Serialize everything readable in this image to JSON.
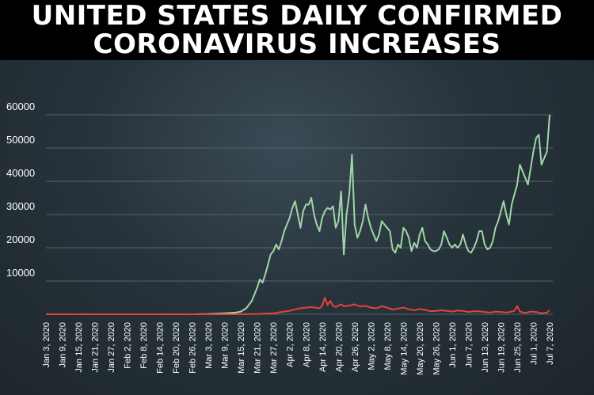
{
  "title": {
    "line1": "UNITED STATES DAILY CONFIRMED",
    "line2": "CORONAVIRUS INCREASES"
  },
  "colors": {
    "cases": "#9fd6a8",
    "deaths": "#e3433c",
    "grid": "#56636c",
    "background": "#27333b"
  },
  "chart_data": {
    "type": "line",
    "title": "UNITED STATES DAILY CONFIRMED CORONAVIRUS INCREASES",
    "xlabel": "",
    "ylabel": "",
    "ylim": [
      0,
      60000
    ],
    "yticks": [
      10000,
      20000,
      30000,
      40000,
      50000,
      60000
    ],
    "grid": true,
    "legend": "none",
    "xtick_labels": [
      "Jan 3, 2020",
      "Jan 9, 2020",
      "Jan 15, 2020",
      "Jan 21, 2020",
      "Jan 27, 2020",
      "Feb 2, 2020",
      "Feb 8, 2020",
      "Feb 14, 2020",
      "Feb 20, 2020",
      "Feb 26, 2020",
      "Mar 3, 2020",
      "Mar 9, 2020",
      "Mar 15, 2020",
      "Mar 21, 2020",
      "Mar 27, 2020",
      "Apr 2, 2020",
      "Apr 8, 2020",
      "Apr 14, 2020",
      "Apr 20, 2020",
      "Apr 26, 2020",
      "May 2, 2020",
      "May 8, 2020",
      "May 14, 2020",
      "May 20, 2020",
      "May 26, 2020",
      "Jun 1, 2020",
      "Jun 7, 2020",
      "Jun 13, 2020",
      "Jun 19, 2020",
      "Jun 25, 2020",
      "Jul 1, 2020",
      "Jul 7, 2020"
    ],
    "series": [
      {
        "values": [
          [
            "2020-01-03",
            0
          ],
          [
            "2020-02-26",
            0
          ],
          [
            "2020-03-03",
            100
          ],
          [
            "2020-03-09",
            300
          ],
          [
            "2020-03-13",
            500
          ],
          [
            "2020-03-15",
            800
          ],
          [
            "2020-03-17",
            1800
          ],
          [
            "2020-03-19",
            4000
          ],
          [
            "2020-03-21",
            8000
          ],
          [
            "2020-03-22",
            10500
          ],
          [
            "2020-03-23",
            9500
          ],
          [
            "2020-03-24",
            12000
          ],
          [
            "2020-03-25",
            15000
          ],
          [
            "2020-03-26",
            18000
          ],
          [
            "2020-03-27",
            19000
          ],
          [
            "2020-03-28",
            21000
          ],
          [
            "2020-03-29",
            19500
          ],
          [
            "2020-03-30",
            22000
          ],
          [
            "2020-03-31",
            25000
          ],
          [
            "2020-04-01",
            27000
          ],
          [
            "2020-04-02",
            29000
          ],
          [
            "2020-04-03",
            32000
          ],
          [
            "2020-04-04",
            34000
          ],
          [
            "2020-04-05",
            30000
          ],
          [
            "2020-04-06",
            26000
          ],
          [
            "2020-04-07",
            31000
          ],
          [
            "2020-04-08",
            33000
          ],
          [
            "2020-04-09",
            33000
          ],
          [
            "2020-04-10",
            35000
          ],
          [
            "2020-04-11",
            30000
          ],
          [
            "2020-04-12",
            27000
          ],
          [
            "2020-04-13",
            25000
          ],
          [
            "2020-04-14",
            29000
          ],
          [
            "2020-04-15",
            31000
          ],
          [
            "2020-04-16",
            32000
          ],
          [
            "2020-04-17",
            31500
          ],
          [
            "2020-04-18",
            32500
          ],
          [
            "2020-04-19",
            26000
          ],
          [
            "2020-04-20",
            28000
          ],
          [
            "2020-04-21",
            37000
          ],
          [
            "2020-04-22",
            18000
          ],
          [
            "2020-04-23",
            30000
          ],
          [
            "2020-04-24",
            36000
          ],
          [
            "2020-04-25",
            48000
          ],
          [
            "2020-04-26",
            27000
          ],
          [
            "2020-04-27",
            23000
          ],
          [
            "2020-04-28",
            25000
          ],
          [
            "2020-04-29",
            28000
          ],
          [
            "2020-04-30",
            33000
          ],
          [
            "2020-05-01",
            29000
          ],
          [
            "2020-05-02",
            26000
          ],
          [
            "2020-05-03",
            24000
          ],
          [
            "2020-05-04",
            22000
          ],
          [
            "2020-05-05",
            24000
          ],
          [
            "2020-05-06",
            28000
          ],
          [
            "2020-05-07",
            27000
          ],
          [
            "2020-05-08",
            26000
          ],
          [
            "2020-05-09",
            25000
          ],
          [
            "2020-05-10",
            19500
          ],
          [
            "2020-05-11",
            18500
          ],
          [
            "2020-05-12",
            21000
          ],
          [
            "2020-05-13",
            20000
          ],
          [
            "2020-05-14",
            26000
          ],
          [
            "2020-05-15",
            25000
          ],
          [
            "2020-05-16",
            23000
          ],
          [
            "2020-05-17",
            19000
          ],
          [
            "2020-05-18",
            21500
          ],
          [
            "2020-05-19",
            20000
          ],
          [
            "2020-05-20",
            24000
          ],
          [
            "2020-05-21",
            26000
          ],
          [
            "2020-05-22",
            22000
          ],
          [
            "2020-05-23",
            21000
          ],
          [
            "2020-05-24",
            19500
          ],
          [
            "2020-05-25",
            19000
          ],
          [
            "2020-05-26",
            19000
          ],
          [
            "2020-05-27",
            19500
          ],
          [
            "2020-05-28",
            21000
          ],
          [
            "2020-05-29",
            25000
          ],
          [
            "2020-05-30",
            23000
          ],
          [
            "2020-05-31",
            21000
          ],
          [
            "2020-06-01",
            20000
          ],
          [
            "2020-06-02",
            21000
          ],
          [
            "2020-06-03",
            20000
          ],
          [
            "2020-06-04",
            21000
          ],
          [
            "2020-06-05",
            24000
          ],
          [
            "2020-06-06",
            21000
          ],
          [
            "2020-06-07",
            19000
          ],
          [
            "2020-06-08",
            18500
          ],
          [
            "2020-06-09",
            20000
          ],
          [
            "2020-06-10",
            22000
          ],
          [
            "2020-06-11",
            25000
          ],
          [
            "2020-06-12",
            25000
          ],
          [
            "2020-06-13",
            21000
          ],
          [
            "2020-06-14",
            19500
          ],
          [
            "2020-06-15",
            20000
          ],
          [
            "2020-06-16",
            22000
          ],
          [
            "2020-06-17",
            26000
          ],
          [
            "2020-06-18",
            28000
          ],
          [
            "2020-06-19",
            31000
          ],
          [
            "2020-06-20",
            34000
          ],
          [
            "2020-06-21",
            30000
          ],
          [
            "2020-06-22",
            27000
          ],
          [
            "2020-06-23",
            33000
          ],
          [
            "2020-06-24",
            36000
          ],
          [
            "2020-06-25",
            39000
          ],
          [
            "2020-06-26",
            45000
          ],
          [
            "2020-06-27",
            43000
          ],
          [
            "2020-06-28",
            41000
          ],
          [
            "2020-06-29",
            39000
          ],
          [
            "2020-06-30",
            44000
          ],
          [
            "2020-07-01",
            49000
          ],
          [
            "2020-07-02",
            53000
          ],
          [
            "2020-07-03",
            54000
          ],
          [
            "2020-07-04",
            45000
          ],
          [
            "2020-07-05",
            47000
          ],
          [
            "2020-07-06",
            49000
          ],
          [
            "2020-07-07",
            60000
          ]
        ]
      },
      {
        "values": [
          [
            "2020-01-03",
            0
          ],
          [
            "2020-03-13",
            0
          ],
          [
            "2020-03-21",
            100
          ],
          [
            "2020-03-27",
            300
          ],
          [
            "2020-03-31",
            800
          ],
          [
            "2020-04-02",
            1000
          ],
          [
            "2020-04-04",
            1500
          ],
          [
            "2020-04-06",
            1800
          ],
          [
            "2020-04-08",
            2000
          ],
          [
            "2020-04-10",
            2200
          ],
          [
            "2020-04-12",
            1900
          ],
          [
            "2020-04-13",
            1800
          ],
          [
            "2020-04-14",
            2500
          ],
          [
            "2020-04-15",
            5000
          ],
          [
            "2020-04-16",
            2800
          ],
          [
            "2020-04-17",
            4000
          ],
          [
            "2020-04-18",
            2600
          ],
          [
            "2020-04-19",
            2200
          ],
          [
            "2020-04-21",
            3000
          ],
          [
            "2020-04-22",
            2400
          ],
          [
            "2020-04-24",
            2600
          ],
          [
            "2020-04-26",
            3000
          ],
          [
            "2020-04-28",
            2300
          ],
          [
            "2020-04-30",
            2500
          ],
          [
            "2020-05-02",
            2000
          ],
          [
            "2020-05-04",
            1800
          ],
          [
            "2020-05-06",
            2400
          ],
          [
            "2020-05-08",
            2000
          ],
          [
            "2020-05-10",
            1400
          ],
          [
            "2020-05-12",
            1700
          ],
          [
            "2020-05-14",
            2000
          ],
          [
            "2020-05-16",
            1500
          ],
          [
            "2020-05-18",
            1200
          ],
          [
            "2020-05-20",
            1600
          ],
          [
            "2020-05-22",
            1300
          ],
          [
            "2020-05-24",
            900
          ],
          [
            "2020-05-26",
            1000
          ],
          [
            "2020-05-28",
            1200
          ],
          [
            "2020-05-30",
            1000
          ],
          [
            "2020-06-01",
            800
          ],
          [
            "2020-06-03",
            1100
          ],
          [
            "2020-06-05",
            1000
          ],
          [
            "2020-06-07",
            700
          ],
          [
            "2020-06-09",
            900
          ],
          [
            "2020-06-11",
            900
          ],
          [
            "2020-06-13",
            700
          ],
          [
            "2020-06-15",
            500
          ],
          [
            "2020-06-17",
            800
          ],
          [
            "2020-06-19",
            700
          ],
          [
            "2020-06-21",
            500
          ],
          [
            "2020-06-23",
            800
          ],
          [
            "2020-06-24",
            1000
          ],
          [
            "2020-06-25",
            2500
          ],
          [
            "2020-06-26",
            800
          ],
          [
            "2020-06-28",
            400
          ],
          [
            "2020-06-30",
            800
          ],
          [
            "2020-07-02",
            700
          ],
          [
            "2020-07-04",
            300
          ],
          [
            "2020-07-06",
            500
          ],
          [
            "2020-07-07",
            1200
          ]
        ]
      }
    ]
  }
}
